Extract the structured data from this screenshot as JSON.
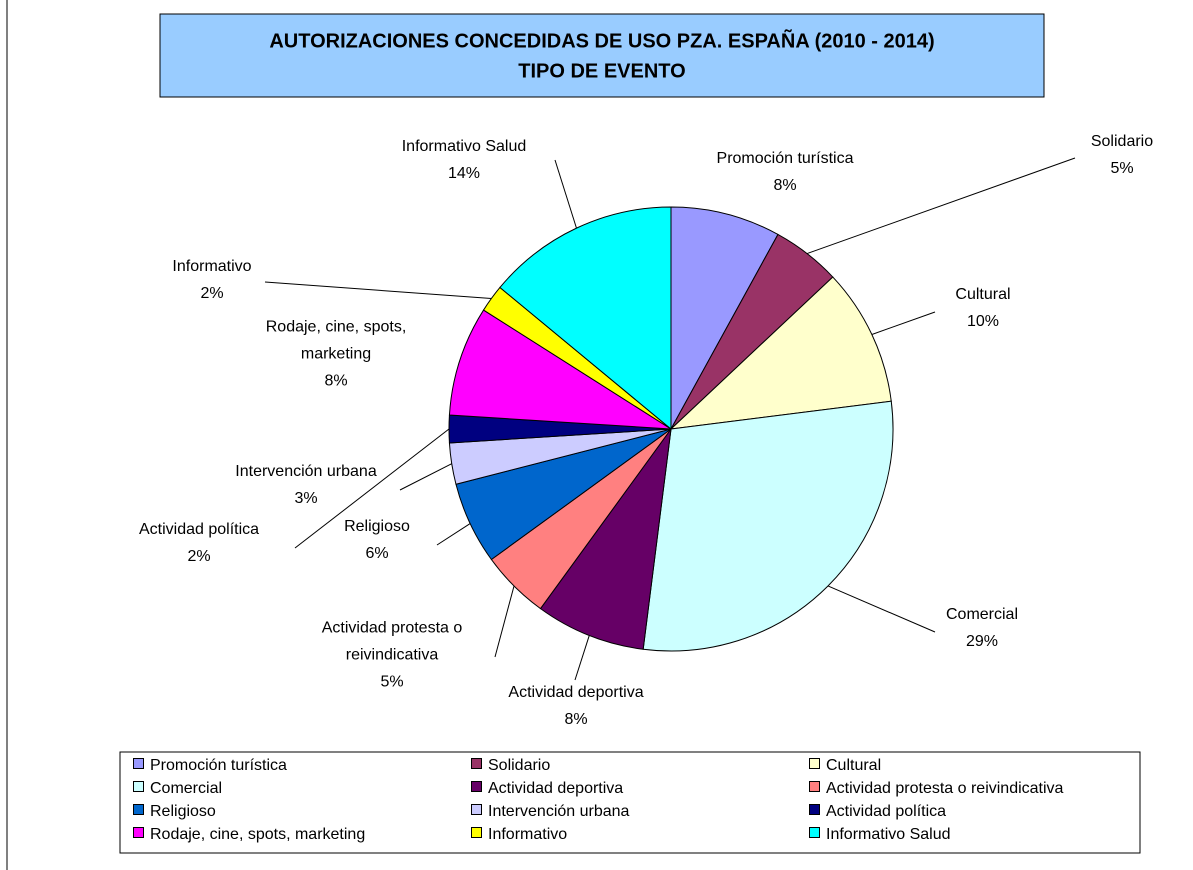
{
  "chart_data": {
    "type": "pie",
    "title": "AUTORIZACIONES CONCEDIDAS DE USO PZA. ESPAÑA (2010 - 2014)",
    "subtitle": "TIPO DE EVENTO",
    "categories": [
      "Promoción turística",
      "Solidario",
      "Cultural",
      "Comercial",
      "Actividad deportiva",
      "Actividad protesta o reivindicativa",
      "Religioso",
      "Intervención urbana",
      "Actividad política",
      "Rodaje, cine, spots, marketing",
      "Informativo",
      "Informativo Salud"
    ],
    "values": [
      8,
      5,
      10,
      29,
      8,
      5,
      6,
      3,
      2,
      8,
      2,
      14
    ],
    "value_labels": [
      "8%",
      "5%",
      "10%",
      "29%",
      "8%",
      "5%",
      "6%",
      "3%",
      "2%",
      "8%",
      "2%",
      "14%"
    ],
    "colors": [
      "#9999ff",
      "#993366",
      "#ffffcc",
      "#ccffff",
      "#660066",
      "#ff8080",
      "#0066cc",
      "#ccccff",
      "#000080",
      "#ff00ff",
      "#ffff00",
      "#00ffff"
    ],
    "legend": "bottom"
  }
}
